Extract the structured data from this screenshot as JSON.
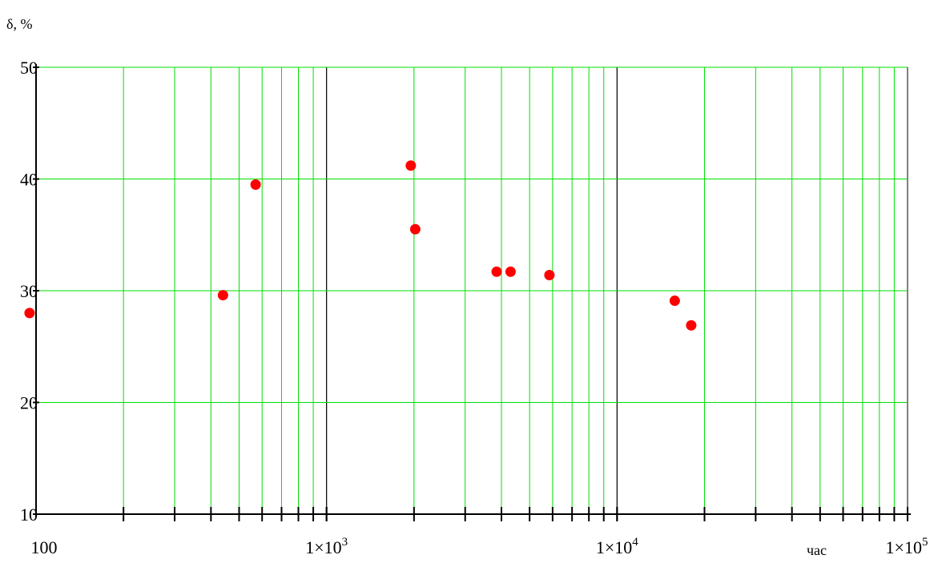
{
  "chart_data": {
    "type": "scatter",
    "title": "",
    "ylabel": "δ, %",
    "xlabel": "час",
    "x_scale": "log",
    "xlim": [
      100,
      100000
    ],
    "ylim": [
      10,
      50
    ],
    "grid": true,
    "x_ticks": [
      {
        "value": 100,
        "base": "100",
        "exp": ""
      },
      {
        "value": 1000,
        "base": "1×10",
        "exp": "3"
      },
      {
        "value": 10000,
        "base": "1×10",
        "exp": "4"
      },
      {
        "value": 100000,
        "base": "1×10",
        "exp": "5"
      }
    ],
    "y_ticks": [
      "10",
      "20",
      "30",
      "40",
      "50"
    ],
    "colors": {
      "grid_minor": "#00e000",
      "grid_major": "#000000",
      "points": "#ff0000",
      "axis": "#000000"
    },
    "series": [
      {
        "points": [
          {
            "x": 95,
            "y": 28
          },
          {
            "x": 440,
            "y": 29.6
          },
          {
            "x": 570,
            "y": 39.5
          },
          {
            "x": 1950,
            "y": 41.2
          },
          {
            "x": 2020,
            "y": 35.5
          },
          {
            "x": 3850,
            "y": 31.7
          },
          {
            "x": 4300,
            "y": 31.7
          },
          {
            "x": 5850,
            "y": 31.4
          },
          {
            "x": 15800,
            "y": 29.1
          },
          {
            "x": 18000,
            "y": 26.9
          }
        ]
      }
    ]
  }
}
